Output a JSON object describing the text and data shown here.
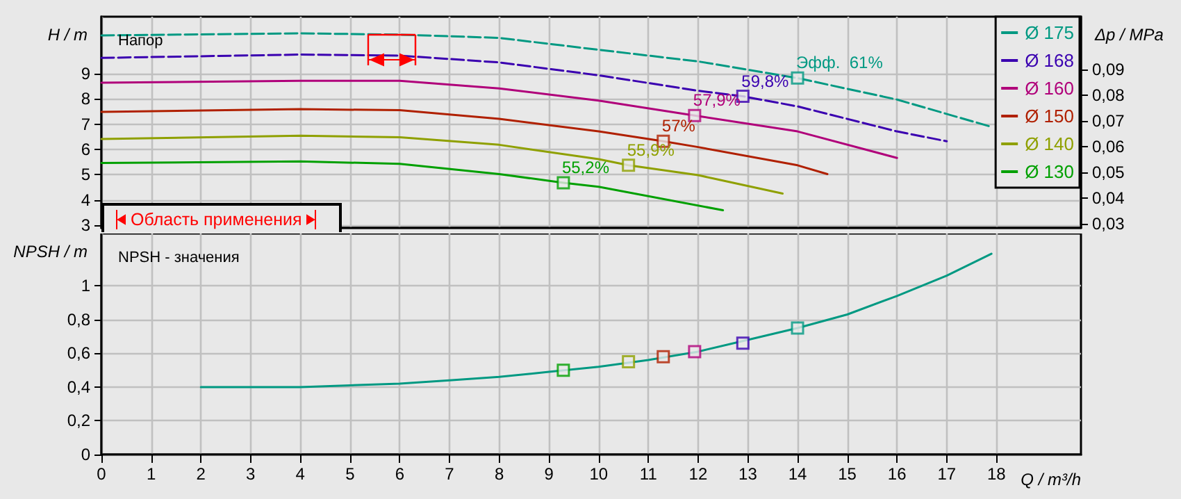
{
  "chart_data": [
    {
      "type": "line",
      "title": "Напор",
      "ylabel": "H / m",
      "y2label": "Δp / MPa",
      "xlim": [
        0,
        19.7
      ],
      "xticks": [
        0,
        1,
        2,
        3,
        4,
        5,
        6,
        7,
        8,
        9,
        10,
        11,
        12,
        13,
        14,
        15,
        16,
        17,
        18
      ],
      "ylim": [
        2.9,
        11.25
      ],
      "yticks": [
        3,
        4,
        5,
        6,
        7,
        8,
        9
      ],
      "y2lim": [
        0.0284,
        0.1105
      ],
      "y2ticks": [
        {
          "value": 0.03,
          "label": "0,03"
        },
        {
          "value": 0.04,
          "label": "0,04"
        },
        {
          "value": 0.05,
          "label": "0,05"
        },
        {
          "value": 0.06,
          "label": "0,06"
        },
        {
          "value": 0.07,
          "label": "0,07"
        },
        {
          "value": 0.08,
          "label": "0,08"
        },
        {
          "value": 0.09,
          "label": "0,09"
        }
      ],
      "tick_labels": "y",
      "grid": true,
      "legend": "right",
      "annotations": [
        "Область применения",
        {
          "text": "55,2%",
          "x": 9.29,
          "y": 4.68
        },
        {
          "text": "55,9%",
          "x": 10.6,
          "y": 5.37
        },
        {
          "text": "57%",
          "x": 11.3,
          "y": 6.32
        },
        {
          "text": "57,9%",
          "x": 11.93,
          "y": 7.34
        },
        {
          "text": "59,8%",
          "x": 12.9,
          "y": 8.1
        },
        {
          "text": "Эфф.  61%",
          "x": 14,
          "y": 8.82
        }
      ],
      "series": [
        {
          "name": "Ø 175",
          "color": "#009982",
          "line_style": "dashed",
          "x": [
            0,
            4,
            6,
            8,
            10,
            12,
            14,
            16,
            17.9
          ],
          "values": [
            10.51,
            10.59,
            10.54,
            10.41,
            9.94,
            9.48,
            8.82,
            7.97,
            6.89
          ]
        },
        {
          "name": "Ø 168",
          "color": "#3a00b0",
          "line_style": "dashed",
          "x": [
            0,
            4,
            6,
            8,
            10,
            12,
            12.9,
            14,
            16,
            17
          ],
          "values": [
            9.62,
            9.75,
            9.71,
            9.44,
            8.93,
            8.32,
            8.1,
            7.7,
            6.71,
            6.32
          ]
        },
        {
          "name": "Ø 160",
          "color": "#b0007a",
          "line_style": "solid",
          "x": [
            0,
            4,
            6,
            8,
            10,
            11.93,
            14,
            16
          ],
          "values": [
            8.64,
            8.71,
            8.71,
            8.41,
            7.93,
            7.34,
            6.71,
            5.66
          ]
        },
        {
          "name": "Ø 150",
          "color": "#b02000",
          "line_style": "solid",
          "x": [
            0,
            4,
            6,
            8,
            10,
            11.3,
            12,
            14,
            14.6
          ],
          "values": [
            7.48,
            7.59,
            7.55,
            7.21,
            6.71,
            6.32,
            6.09,
            5.37,
            5.02
          ]
        },
        {
          "name": "Ø 140",
          "color": "#8fa000",
          "line_style": "solid",
          "x": [
            0,
            4,
            6,
            8,
            10,
            10.6,
            12,
            13.7
          ],
          "values": [
            6.41,
            6.54,
            6.48,
            6.18,
            5.61,
            5.37,
            4.98,
            4.25
          ]
        },
        {
          "name": "Ø 130",
          "color": "#00a000",
          "line_style": "solid",
          "x": [
            0,
            4,
            6,
            8,
            9.29,
            10,
            12.5
          ],
          "values": [
            5.46,
            5.52,
            5.43,
            5.02,
            4.68,
            4.52,
            3.59
          ]
        },
        {
          "type": "scatter",
          "marker": "square",
          "x": [
            9.29,
            10.6,
            11.3,
            11.93,
            12.9,
            14
          ],
          "values": [
            4.68,
            5.37,
            6.32,
            7.34,
            8.1,
            8.82
          ],
          "colors": [
            "#00a000",
            "#8fa000",
            "#b02000",
            "#b0007a",
            "#3a00b0",
            "#009982"
          ]
        }
      ]
    },
    {
      "type": "line",
      "title": "NPSH - значения",
      "ylabel": "NPSH / m",
      "xlabel": "Q / m³/h",
      "xlim": [
        0,
        19.7
      ],
      "xticks": [
        0,
        1,
        2,
        3,
        4,
        5,
        6,
        7,
        8,
        9,
        10,
        11,
        12,
        13,
        14,
        15,
        16,
        17,
        18
      ],
      "ylim": [
        0,
        1.31
      ],
      "yticks": [
        0,
        {
          "value": 0.2,
          "label": "0,2"
        },
        {
          "value": 0.4,
          "label": "0,4"
        },
        {
          "value": 0.6,
          "label": "0,6"
        },
        {
          "value": 0.8,
          "label": "0,8"
        },
        1
      ],
      "grid": true,
      "series": [
        {
          "color": "#009982",
          "line_style": "solid",
          "x": [
            2,
            3,
            4,
            5,
            6,
            7,
            8,
            9,
            10,
            11,
            12,
            13,
            14,
            15,
            16,
            17,
            17.9
          ],
          "values": [
            0.4,
            0.4,
            0.4,
            0.41,
            0.42,
            0.44,
            0.46,
            0.49,
            0.52,
            0.56,
            0.61,
            0.68,
            0.75,
            0.83,
            0.94,
            1.06,
            1.19
          ]
        },
        {
          "type": "scatter",
          "marker": "square",
          "x": [
            9.29,
            10.6,
            11.3,
            11.93,
            12.9,
            14
          ],
          "values": [
            0.5,
            0.55,
            0.58,
            0.61,
            0.66,
            0.75
          ],
          "colors": [
            "#00a000",
            "#8fa000",
            "#b02000",
            "#b0007a",
            "#3a00b0",
            "#009982"
          ]
        }
      ]
    }
  ]
}
